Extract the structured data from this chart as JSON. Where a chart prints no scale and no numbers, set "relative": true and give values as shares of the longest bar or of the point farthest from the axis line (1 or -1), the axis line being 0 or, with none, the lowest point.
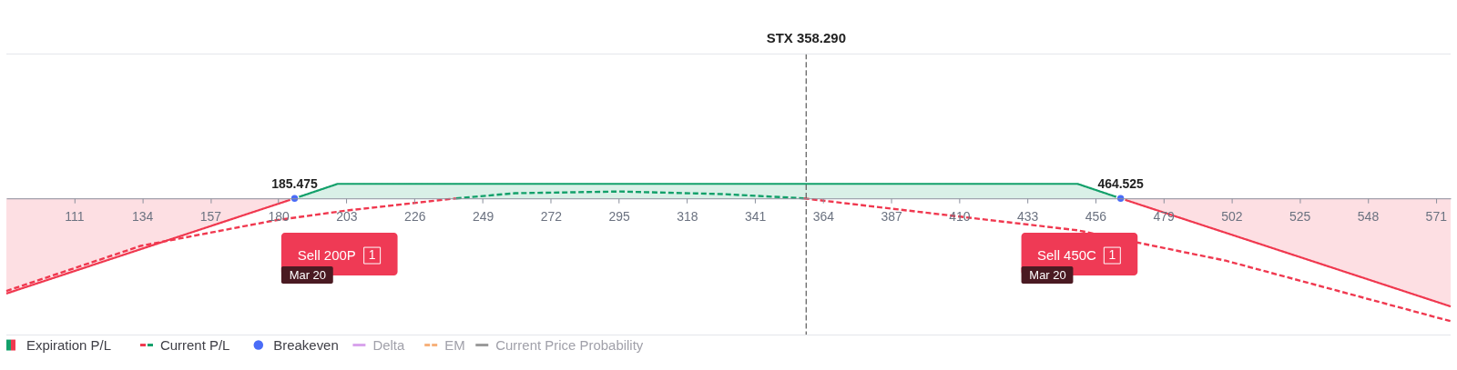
{
  "chart_data": {
    "type": "line",
    "relative": true,
    "legend": "bottom",
    "grid": false,
    "xlim": [
      88.1,
      576
    ],
    "xticks": [
      111,
      134,
      157,
      180,
      203,
      226,
      249,
      272,
      295,
      318,
      341,
      364,
      387,
      410,
      433,
      456,
      479,
      502,
      525,
      548,
      571
    ],
    "series": [
      {
        "name": "Expiration P/L",
        "type": "area",
        "color": "#12a06a",
        "x": [
          185.475,
          200,
          450,
          464.525
        ],
        "values": [
          0,
          0.118,
          0.118,
          0
        ]
      },
      {
        "type": "area",
        "color": "#f0384f",
        "x": [
          88.1,
          185.475
        ],
        "values": [
          -0.775,
          0
        ]
      },
      {
        "type": "area",
        "color": "#f0384f",
        "x": [
          464.525,
          576
        ],
        "values": [
          0,
          -0.88
        ]
      },
      {
        "name": "Current P/L",
        "line_style": "dashed",
        "color": "#12a06a",
        "x": [
          240,
          260,
          295,
          330,
          357.5
        ],
        "values": [
          0,
          0.042,
          0.056,
          0.035,
          0
        ]
      },
      {
        "line_style": "dashed",
        "color": "#f0384f",
        "x": [
          88.1,
          133.5,
          178.6,
          203,
          240
        ],
        "values": [
          -0.754,
          -0.387,
          -0.18,
          -0.099,
          0
        ]
      },
      {
        "line_style": "dashed",
        "color": "#f0384f",
        "x": [
          357.5,
          400,
          450,
          500,
          576
        ],
        "values": [
          0,
          -0.12,
          -0.26,
          -0.507,
          -1
        ]
      },
      {
        "name": "Breakeven",
        "type": "scatter",
        "marker": "circle",
        "color": "#4a6cf7",
        "x": [
          185.475,
          464.525
        ],
        "values": [
          0,
          0
        ]
      },
      {
        "name": "Delta",
        "color": "#d9a3ec"
      },
      {
        "name": "EM",
        "line_style": "dashed",
        "color": "#f7b07a"
      },
      {
        "name": "Current Price Probability",
        "color": "#9a9a9a"
      }
    ],
    "ref_lines": [
      {
        "axis": "x",
        "value": 358.29,
        "label": "STX 358.290",
        "color": "#666666",
        "line_style": "dashed"
      }
    ],
    "annotations": [
      {
        "text": "185.475",
        "x": 185.475,
        "y": 0
      },
      {
        "text": "464.525",
        "x": 464.525,
        "y": 0
      },
      "Sell 200P",
      "1",
      "Mar 20",
      "Sell 450C",
      "1",
      "Mar 20"
    ]
  }
}
